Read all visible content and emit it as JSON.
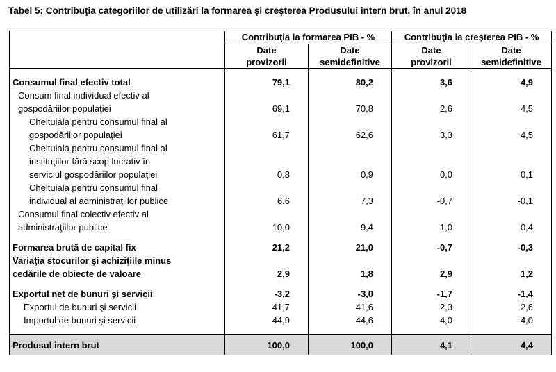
{
  "title": "Tabel 5: Contribuţia categoriilor de utilizări la formarea şi creşterea Produsului intern brut, în anul 2018",
  "headers": {
    "group1": "Contribuţia la formarea PIB - %",
    "group2": "Contribuţia la creşterea PIB - %",
    "col1": [
      "Date",
      "provizorii"
    ],
    "col2": [
      "Date",
      "semidefinitive"
    ],
    "col3": [
      "Date",
      "provizorii"
    ],
    "col4": [
      "Date",
      "semidefinitive"
    ]
  },
  "rows": [
    {
      "label": [
        "Consumul final  efectiv total"
      ],
      "values": [
        "79,1",
        "80,2",
        "3,6",
        "4,9"
      ]
    },
    {
      "label": [
        "Consum final individual efectiv al",
        "gospodăriilor populaţiei"
      ],
      "values": [
        "69,1",
        "70,8",
        "2,6",
        "4,5"
      ]
    },
    {
      "label": [
        "Cheltuiala pentru consumul final al",
        "gospodăriilor populaţiei"
      ],
      "values": [
        "61,7",
        "62,6",
        "3,3",
        "4,5"
      ]
    },
    {
      "label": [
        "Cheltuiala pentru consumul final al",
        "instituţiilor fără scop lucrativ în",
        "serviciul gospodăriilor populaţiei"
      ],
      "values": [
        "0,8",
        "0,9",
        "0,0",
        "0,1"
      ]
    },
    {
      "label": [
        "Cheltuiala pentru consumul final",
        "individual al administraţiilor publice"
      ],
      "values": [
        "6,6",
        "7,3",
        "-0,7",
        "-0,1"
      ]
    },
    {
      "label": [
        "Consumul final colectiv efectiv al",
        "administraţiilor publice"
      ],
      "values": [
        "10,0",
        "9,4",
        "1,0",
        "0,4"
      ]
    },
    {
      "label": [
        "Formarea brută de capital fix"
      ],
      "values": [
        "21,2",
        "21,0",
        "-0,7",
        "-0,3"
      ]
    },
    {
      "label": [
        "Variaţia stocurilor şi achiziţiile minus",
        "cedările de obiecte de valoare"
      ],
      "values": [
        "2,9",
        "1,8",
        "2,9",
        "1,2"
      ]
    },
    {
      "label": [
        "Exportul net de bunuri şi servicii"
      ],
      "values": [
        "-3,2",
        "-3,0",
        "-1,7",
        "-1,4"
      ]
    },
    {
      "label": [
        "Exportul de bunuri şi servicii"
      ],
      "values": [
        "41,7",
        "41,6",
        "2,3",
        "2,6"
      ]
    },
    {
      "label": [
        "Importul de bunuri şi servicii"
      ],
      "values": [
        "44,9",
        "44,6",
        "4,0",
        "4,0"
      ]
    },
    {
      "label": [
        "Produsul intern brut"
      ],
      "values": [
        "100,0",
        "100,0",
        "4,1",
        "4,4"
      ]
    }
  ]
}
